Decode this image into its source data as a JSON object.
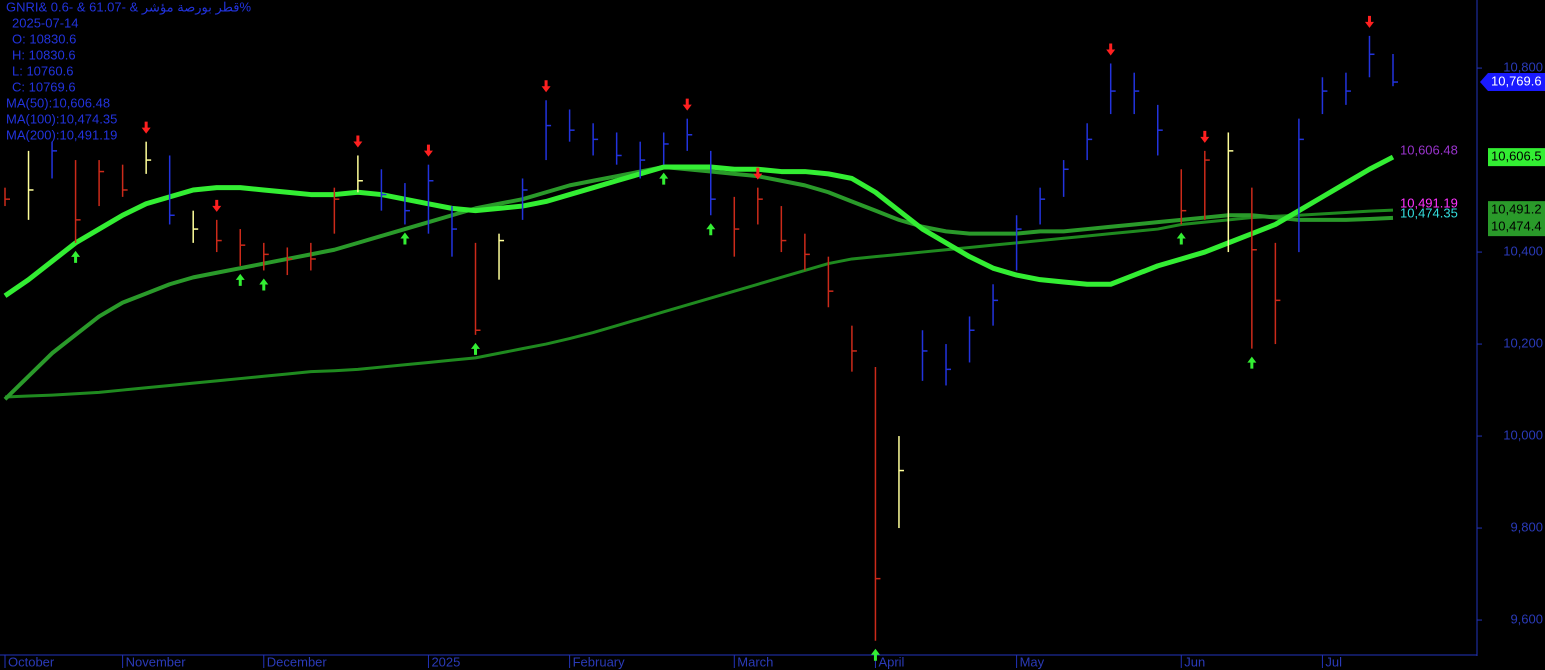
{
  "chart_data": {
    "type": "hlc",
    "title": "GNRI& قطر بورصة مؤشر  &  -61.07 & -0.6%",
    "info": [
      "2025-07-14",
      "O: 10830.6",
      "H: 10830.6",
      "L: 10760.6",
      "C: 10769.6",
      "MA(50):10,606.48",
      "MA(100):10,474.35",
      "MA(200):10,491.19"
    ],
    "categories": [
      "October",
      null,
      null,
      null,
      null,
      "November",
      null,
      null,
      null,
      null,
      null,
      "December",
      null,
      null,
      null,
      null,
      null,
      null,
      "2025",
      null,
      null,
      null,
      null,
      null,
      "February",
      null,
      null,
      null,
      null,
      null,
      null,
      "March",
      null,
      null,
      null,
      null,
      null,
      "April",
      null,
      null,
      null,
      null,
      null,
      "May",
      null,
      null,
      null,
      null,
      null,
      null,
      "Jun",
      null,
      null,
      null,
      null,
      null,
      "Jul",
      null,
      null,
      null
    ],
    "high": [
      10540,
      10620,
      10640,
      10600,
      10600,
      10590,
      10640,
      10610,
      10490,
      10470,
      10450,
      10420,
      10410,
      10420,
      10540,
      10610,
      10580,
      10550,
      10590,
      10500,
      10420,
      10440,
      10560,
      10730,
      10710,
      10680,
      10660,
      10640,
      10660,
      10690,
      10620,
      10520,
      10540,
      10500,
      10440,
      10390,
      10240,
      10150,
      10000,
      10230,
      10200,
      10260,
      10330,
      10480,
      10540,
      10600,
      10680,
      10810,
      10790,
      10720,
      10580,
      10620,
      10660,
      10540,
      10420,
      10690,
      10780,
      10790,
      10870,
      10830.6
    ],
    "low": [
      10500,
      10470,
      10560,
      10420,
      10500,
      10520,
      10570,
      10460,
      10420,
      10400,
      10370,
      10360,
      10350,
      10360,
      10440,
      10530,
      10490,
      10460,
      10440,
      10390,
      10220,
      10340,
      10470,
      10600,
      10640,
      10610,
      10590,
      10560,
      10590,
      10620,
      10480,
      10390,
      10460,
      10400,
      10360,
      10280,
      10140,
      9555,
      9800,
      10120,
      10110,
      10160,
      10240,
      10360,
      10460,
      10520,
      10600,
      10700,
      10700,
      10610,
      10460,
      10470,
      10400,
      10190,
      10200,
      10400,
      10700,
      10720,
      10780,
      10760.6
    ],
    "close": [
      10515,
      10535,
      10620,
      10470,
      10575,
      10535,
      10600,
      10480,
      10450,
      10425,
      10415,
      10395,
      10385,
      10385,
      10515,
      10555,
      10525,
      10490,
      10555,
      10450,
      10230,
      10425,
      10535,
      10675,
      10665,
      10645,
      10610,
      10600,
      10635,
      10655,
      10515,
      10450,
      10515,
      10425,
      10395,
      10315,
      10185,
      9690,
      9925,
      10185,
      10145,
      10230,
      10295,
      10450,
      10515,
      10580,
      10645,
      10750,
      10750,
      10665,
      10490,
      10600,
      10620,
      10405,
      10295,
      10645,
      10750,
      10750,
      10830,
      10769.6
    ],
    "bar_colors": [
      "#cc2a1a",
      "#ffff99",
      "#2233dd",
      "#cc2a1a",
      "#cc2a1a",
      "#cc2a1a",
      "#ffff99",
      "#2233dd",
      "#ffff99",
      "#cc2a1a",
      "#cc2a1a",
      "#cc2a1a",
      "#cc2a1a",
      "#cc2a1a",
      "#cc2a1a",
      "#ffff99",
      "#2233dd",
      "#2233dd",
      "#2233dd",
      "#2233dd",
      "#cc2a1a",
      "#ffff99",
      "#2233dd",
      "#2233dd",
      "#2233dd",
      "#2233dd",
      "#2233dd",
      "#2233dd",
      "#2233dd",
      "#2233dd",
      "#2233dd",
      "#cc2a1a",
      "#cc2a1a",
      "#cc2a1a",
      "#cc2a1a",
      "#cc2a1a",
      "#cc2a1a",
      "#cc2a1a",
      "#ffff99",
      "#2233dd",
      "#2233dd",
      "#2233dd",
      "#2233dd",
      "#2233dd",
      "#2233dd",
      "#2233dd",
      "#2233dd",
      "#2233dd",
      "#2233dd",
      "#2233dd",
      "#cc2a1a",
      "#cc2a1a",
      "#ffff99",
      "#cc2a1a",
      "#cc2a1a",
      "#2233dd",
      "#2233dd",
      "#2233dd",
      "#2233dd",
      "#2233dd"
    ],
    "signals": [
      null,
      null,
      null,
      "up",
      null,
      null,
      "down",
      null,
      null,
      "down",
      "up",
      "up",
      null,
      null,
      null,
      "down",
      null,
      "up",
      "down",
      null,
      "up",
      null,
      null,
      "down",
      null,
      null,
      null,
      null,
      "up",
      "down",
      "up",
      null,
      "down",
      null,
      null,
      null,
      null,
      "up",
      null,
      null,
      null,
      null,
      null,
      null,
      null,
      null,
      null,
      "down",
      null,
      null,
      "up",
      "down",
      null,
      "up",
      null,
      null,
      null,
      null,
      "down",
      null
    ],
    "series": [
      {
        "name": "MA(50)",
        "color": "#33ee33",
        "width": 5,
        "values": [
          10305,
          10340,
          10380,
          10420,
          10450,
          10480,
          10505,
          10520,
          10535,
          10540,
          10540,
          10535,
          10530,
          10525,
          10525,
          10530,
          10525,
          10515,
          10505,
          10495,
          10490,
          10495,
          10500,
          10510,
          10525,
          10540,
          10555,
          10570,
          10585,
          10585,
          10585,
          10580,
          10580,
          10575,
          10575,
          10570,
          10560,
          10530,
          10490,
          10450,
          10420,
          10390,
          10365,
          10350,
          10340,
          10335,
          10330,
          10330,
          10350,
          10370,
          10385,
          10400,
          10420,
          10440,
          10460,
          10490,
          10520,
          10550,
          10580,
          10606.48
        ]
      },
      {
        "name": "MA(100)",
        "color": "#2a9a2a",
        "width": 4,
        "values": [
          10080,
          10130,
          10180,
          10220,
          10260,
          10290,
          10310,
          10330,
          10345,
          10355,
          10365,
          10375,
          10385,
          10395,
          10405,
          10420,
          10435,
          10450,
          10465,
          10480,
          10495,
          10505,
          10515,
          10530,
          10545,
          10555,
          10565,
          10575,
          10585,
          10580,
          10575,
          10570,
          10565,
          10555,
          10545,
          10530,
          10510,
          10490,
          10470,
          10455,
          10445,
          10440,
          10440,
          10440,
          10445,
          10445,
          10450,
          10455,
          10460,
          10465,
          10470,
          10475,
          10480,
          10480,
          10475,
          10470,
          10470,
          10470,
          10472,
          10474.35
        ]
      },
      {
        "name": "MA(200)",
        "color": "#1f8a1f",
        "width": 3,
        "values": [
          10085,
          10087,
          10089,
          10092,
          10095,
          10100,
          10105,
          10110,
          10115,
          10120,
          10125,
          10130,
          10135,
          10140,
          10142,
          10145,
          10150,
          10155,
          10160,
          10165,
          10170,
          10180,
          10190,
          10200,
          10212,
          10225,
          10240,
          10255,
          10270,
          10285,
          10300,
          10315,
          10330,
          10345,
          10360,
          10375,
          10385,
          10390,
          10395,
          10400,
          10405,
          10410,
          10415,
          10420,
          10425,
          10430,
          10435,
          10440,
          10445,
          10450,
          10460,
          10465,
          10470,
          10475,
          10478,
          10480,
          10483,
          10486,
          10489,
          10491.19
        ]
      }
    ],
    "price_labels": [
      {
        "value": 10769.6,
        "label": "10,769.6",
        "color": "#1a1aff",
        "box": true
      },
      {
        "value": 10606.48,
        "label": "10,606.48",
        "color": "#9933cc",
        "box": false
      },
      {
        "value": 10606.5,
        "label": "10,606.5",
        "color": "#33ee33",
        "box": true
      },
      {
        "value": 10491.19,
        "label": "10,491.19",
        "color": "#ff33ff",
        "box": false
      },
      {
        "value": 10474.35,
        "label": "10,474.35",
        "color": "#33dddd",
        "box": false
      },
      {
        "value": 10491.2,
        "label": "10,491.2",
        "color": "#2a9a2a",
        "box": true
      },
      {
        "value": 10474.4,
        "label": "10,474.4",
        "color": "#2a9a2a",
        "box": true
      }
    ],
    "ylim": [
      9524,
      10948
    ],
    "yticks": [
      {
        "value": 9600,
        "label": "9,600"
      },
      {
        "value": 9800,
        "label": "9,800"
      },
      {
        "value": 10000,
        "label": "10,000"
      },
      {
        "value": 10200,
        "label": "10,200"
      },
      {
        "value": 10400,
        "label": "10,400"
      },
      {
        "value": 10800,
        "label": "10,800"
      }
    ]
  }
}
